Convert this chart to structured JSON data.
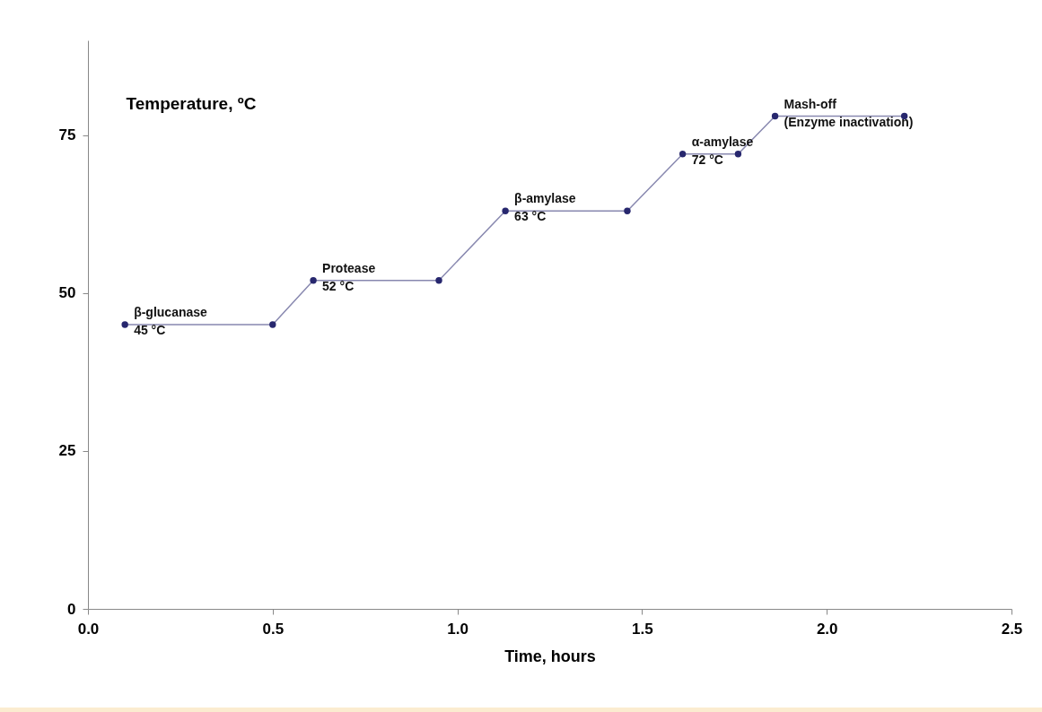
{
  "chart_data": {
    "type": "line",
    "xlabel": "Time, hours",
    "ylabel": "Temperature, ºC",
    "x": [
      0.1,
      0.5,
      0.61,
      0.95,
      1.13,
      1.46,
      1.61,
      1.76,
      1.86,
      2.21
    ],
    "series": [
      {
        "color": "#27276e",
        "values": [
          45,
          45,
          52,
          52,
          63,
          63,
          72,
          72,
          78,
          78
        ]
      }
    ],
    "xlim": [
      0,
      2.5
    ],
    "xticks": [
      {
        "value": 0,
        "label": "0.0"
      },
      {
        "value": 0.5,
        "label": "0.5"
      },
      {
        "value": 1,
        "label": "1.0"
      },
      {
        "value": 1.5,
        "label": "1.5"
      },
      {
        "value": 2,
        "label": "2.0"
      },
      {
        "value": 2.5,
        "label": "2.5"
      }
    ],
    "ylim": [
      0,
      90
    ],
    "yticks": [
      0,
      25,
      50,
      75
    ],
    "grid": false,
    "marker": "circle",
    "line_style": "solid",
    "annotations": [
      {
        "text": "β-glucanase\n45 °C",
        "x": 0.1,
        "y": 45
      },
      {
        "text": "Protease\n52 °C",
        "x": 0.61,
        "y": 52
      },
      {
        "text": "β-amylase\n63 °C",
        "x": 1.13,
        "y": 63
      },
      {
        "text": "α-amylase\n72 °C",
        "x": 1.61,
        "y": 72
      },
      {
        "text": "Mash-off\n(Enzyme inactivation)",
        "x": 1.86,
        "y": 78
      }
    ]
  }
}
